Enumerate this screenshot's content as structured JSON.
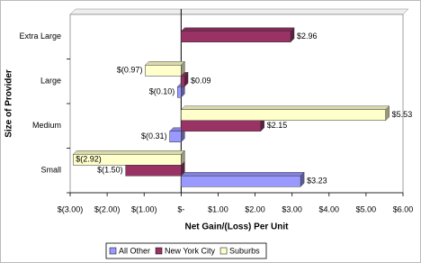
{
  "chart_data": {
    "type": "bar",
    "orientation": "horizontal",
    "x_label": "Net Gain/(Loss) Per Unit",
    "y_label": "Size of Provider",
    "categories": [
      "Small",
      "Medium",
      "Large",
      "Extra Large"
    ],
    "series": [
      {
        "name": "All Other",
        "color": "#9999ff",
        "values": [
          3.23,
          -0.31,
          -0.1,
          null
        ],
        "value_labels": [
          "$3.23",
          "$(0.31)",
          "$(0.10)",
          null
        ]
      },
      {
        "name": "New York City",
        "color": "#993366",
        "values": [
          -1.5,
          2.15,
          0.09,
          2.96
        ],
        "value_labels": [
          "$(1.50)",
          "$2.15",
          "$0.09",
          "$2.96"
        ]
      },
      {
        "name": "Suburbs",
        "color": "#ffffcc",
        "values": [
          -2.92,
          5.53,
          -0.97,
          null
        ],
        "value_labels": [
          "$(2.92)",
          "$5.53",
          "$(0.97)",
          null
        ]
      }
    ],
    "xlim": [
      -3,
      6
    ],
    "xticks": [
      {
        "value": -3,
        "label": "$(3.00)"
      },
      {
        "value": -2,
        "label": "$(2.00)"
      },
      {
        "value": -1,
        "label": "$(1.00)"
      },
      {
        "value": 0,
        "label": "$-"
      },
      {
        "value": 1,
        "label": "$1.00"
      },
      {
        "value": 2,
        "label": "$2.00"
      },
      {
        "value": 3,
        "label": "$3.00"
      },
      {
        "value": 4,
        "label": "$4.00"
      },
      {
        "value": 5,
        "label": "$5.00"
      },
      {
        "value": 6,
        "label": "$6.00"
      }
    ],
    "grid": false,
    "legend": "bottom"
  }
}
